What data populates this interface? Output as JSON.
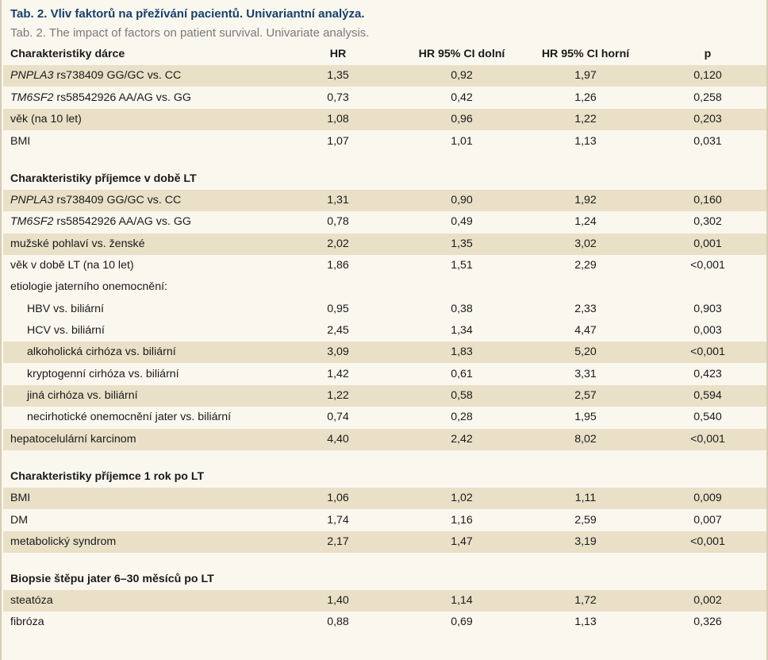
{
  "title_cz": "Tab. 2. Vliv faktorů na přežívání pacientů. Univariantní analýza.",
  "title_en": "Tab. 2. The impact of factors on patient survival. Univariate analysis.",
  "colors": {
    "title": "#17406b",
    "band": "#e9e0c7",
    "background": "#faf7ef"
  },
  "header": {
    "label": "Charakteristiky dárce",
    "hr": "HR",
    "ci_low": "HR 95% CI dolní",
    "ci_high": "HR 95% CI horní",
    "p": "p"
  },
  "donor": [
    {
      "gene": "PNPLA3",
      "label": " rs738409 GG/GC vs. CC",
      "hr": "1,35",
      "lo": "0,92",
      "hi": "1,97",
      "p": "0,120"
    },
    {
      "gene": "TM6SF2",
      "label": " rs58542926 AA/AG vs. GG",
      "hr": "0,73",
      "lo": "0,42",
      "hi": "1,26",
      "p": "0,258"
    },
    {
      "label": "věk (na 10 let)",
      "hr": "1,08",
      "lo": "0,96",
      "hi": "1,22",
      "p": "0,203"
    },
    {
      "label": "BMI",
      "hr": "1,07",
      "lo": "1,01",
      "hi": "1,13",
      "p": "0,031"
    }
  ],
  "recipient_lt": {
    "title": "Charakteristiky příjemce v době LT",
    "rows": [
      {
        "gene": "PNPLA3",
        "label": " rs738409 GG/GC vs. CC",
        "hr": "1,31",
        "lo": "0,90",
        "hi": "1,92",
        "p": "0,160"
      },
      {
        "gene": "TM6SF2",
        "label": " rs58542926 AA/AG vs. GG",
        "hr": "0,78",
        "lo": "0,49",
        "hi": "1,24",
        "p": "0,302"
      },
      {
        "label": "mužské pohlaví vs. ženské",
        "hr": "2,02",
        "lo": "1,35",
        "hi": "3,02",
        "p": "0,001"
      },
      {
        "label": "věk v době LT (na 10 let)",
        "hr": "1,86",
        "lo": "1,51",
        "hi": "2,29",
        "p": "<0,001"
      },
      {
        "label": "etiologie jaterního onemocnění:",
        "hr": "",
        "lo": "",
        "hi": "",
        "p": ""
      },
      {
        "label": "HBV vs. biliární",
        "hr": "0,95",
        "lo": "0,38",
        "hi": "2,33",
        "p": "0,903"
      },
      {
        "label": "HCV vs. biliární",
        "hr": "2,45",
        "lo": "1,34",
        "hi": "4,47",
        "p": "0,003"
      },
      {
        "label": "alkoholická cirhóza vs. biliární",
        "hr": "3,09",
        "lo": "1,83",
        "hi": "5,20",
        "p": "<0,001"
      },
      {
        "label": "kryptogenní cirhóza vs. biliární",
        "hr": "1,42",
        "lo": "0,61",
        "hi": "3,31",
        "p": "0,423"
      },
      {
        "label": "jiná cirhóza vs. biliární",
        "hr": "1,22",
        "lo": "0,58",
        "hi": "2,57",
        "p": "0,594"
      },
      {
        "label": "necirhotické onemocnění jater vs. biliární",
        "hr": "0,74",
        "lo": "0,28",
        "hi": "1,95",
        "p": "0,540"
      },
      {
        "label": "hepatocelulární karcinom",
        "hr": "4,40",
        "lo": "2,42",
        "hi": "8,02",
        "p": "<0,001"
      }
    ]
  },
  "recipient_1y": {
    "title": "Charakteristiky příjemce 1 rok po LT",
    "rows": [
      {
        "label": "BMI",
        "hr": "1,06",
        "lo": "1,02",
        "hi": "1,11",
        "p": "0,009"
      },
      {
        "label": "DM",
        "hr": "1,74",
        "lo": "1,16",
        "hi": "2,59",
        "p": "0,007"
      },
      {
        "label": "metabolický syndrom",
        "hr": "2,17",
        "lo": "1,47",
        "hi": "3,19",
        "p": "<0,001"
      }
    ]
  },
  "biopsy": {
    "title": "Biopsie štěpu jater 6–30 měsíců po LT",
    "rows": [
      {
        "label": "steatóza",
        "hr": "1,40",
        "lo": "1,14",
        "hi": "1,72",
        "p": "0,002"
      },
      {
        "label": "fibróza",
        "hr": "0,88",
        "lo": "0,69",
        "hi": "1,13",
        "p": "0,326"
      }
    ]
  }
}
